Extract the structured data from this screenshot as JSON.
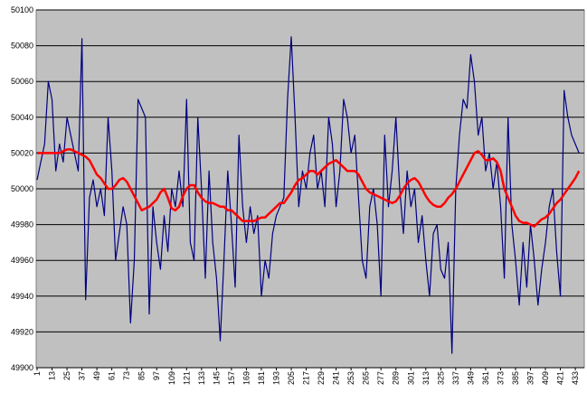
{
  "chart_data": {
    "type": "line",
    "x": [
      1,
      4,
      7,
      10,
      13,
      16,
      19,
      22,
      25,
      28,
      31,
      34,
      37,
      40,
      43,
      46,
      49,
      52,
      55,
      58,
      61,
      64,
      67,
      70,
      73,
      76,
      79,
      82,
      85,
      88,
      91,
      94,
      97,
      100,
      103,
      106,
      109,
      112,
      115,
      118,
      121,
      124,
      127,
      130,
      133,
      136,
      139,
      142,
      145,
      148,
      151,
      154,
      157,
      160,
      163,
      166,
      169,
      172,
      175,
      178,
      181,
      184,
      187,
      190,
      193,
      196,
      199,
      202,
      205,
      208,
      211,
      214,
      217,
      220,
      223,
      226,
      229,
      232,
      235,
      238,
      241,
      244,
      247,
      250,
      253,
      256,
      259,
      262,
      265,
      268,
      271,
      274,
      277,
      280,
      283,
      286,
      289,
      292,
      295,
      298,
      301,
      304,
      307,
      310,
      313,
      316,
      319,
      322,
      325,
      328,
      331,
      334,
      337,
      340,
      343,
      346,
      349,
      352,
      355,
      358,
      361,
      364,
      367,
      370,
      373,
      376,
      379,
      382,
      385,
      388,
      391,
      394,
      397,
      400,
      403,
      406,
      409,
      412,
      415,
      418,
      421,
      424,
      427,
      430,
      433,
      436
    ],
    "series": [
      {
        "color": "#000080",
        "values": [
          50005,
          50015,
          50025,
          50060,
          50050,
          50010,
          50025,
          50015,
          50040,
          50030,
          50020,
          50010,
          50084,
          49938,
          49995,
          50005,
          49990,
          50000,
          49985,
          50040,
          50010,
          49960,
          49975,
          49990,
          49980,
          49925,
          49960,
          50050,
          50045,
          50040,
          49930,
          49990,
          49970,
          49955,
          49985,
          49965,
          50000,
          49990,
          50010,
          49990,
          50050,
          49970,
          49960,
          50040,
          50000,
          49950,
          50010,
          49970,
          49950,
          49915,
          49960,
          50010,
          49980,
          49945,
          50030,
          49990,
          49970,
          49990,
          49975,
          49985,
          49940,
          49960,
          49950,
          49975,
          49985,
          49990,
          49995,
          50050,
          50085,
          50040,
          49990,
          50010,
          50000,
          50020,
          50030,
          50000,
          50010,
          49990,
          50040,
          50025,
          49990,
          50010,
          50050,
          50040,
          50020,
          50030,
          49995,
          49960,
          49950,
          49990,
          50000,
          49980,
          49940,
          50030,
          49990,
          50010,
          50040,
          50000,
          49975,
          50010,
          49990,
          50000,
          49970,
          49985,
          49960,
          49940,
          49975,
          49980,
          49955,
          49950,
          49970,
          49908,
          50000,
          50030,
          50050,
          50045,
          50075,
          50060,
          50030,
          50040,
          50010,
          50020,
          50000,
          50015,
          49990,
          49950,
          50040,
          49980,
          49960,
          49935,
          49970,
          49945,
          49980,
          49960,
          49935,
          49955,
          49970,
          49990,
          50000,
          49965,
          49940,
          50055,
          50040,
          50030,
          50025,
          50020
        ]
      },
      {
        "color": "#ff0000",
        "values": [
          50020,
          50020,
          50020,
          50020,
          50020,
          50020,
          50020,
          50021,
          50022,
          50022,
          50021,
          50020,
          50019,
          50018,
          50016,
          50012,
          50008,
          50006,
          50003,
          50000,
          50000,
          50002,
          50005,
          50006,
          50004,
          50000,
          49996,
          49992,
          49988,
          49989,
          49990,
          49992,
          49994,
          49998,
          50000,
          49995,
          49989,
          49988,
          49990,
          49996,
          50000,
          50002,
          50002,
          49998,
          49995,
          49993,
          49992,
          49992,
          49991,
          49990,
          49990,
          49988,
          49988,
          49986,
          49984,
          49982,
          49982,
          49982,
          49982,
          49983,
          49984,
          49984,
          49986,
          49988,
          49990,
          49992,
          49992,
          49995,
          49998,
          50002,
          50005,
          50006,
          50008,
          50010,
          50010,
          50008,
          50010,
          50012,
          50014,
          50015,
          50016,
          50014,
          50012,
          50010,
          50010,
          50010,
          50008,
          50004,
          50000,
          49998,
          49997,
          49996,
          49995,
          49994,
          49993,
          49992,
          49993,
          49996,
          50000,
          50003,
          50005,
          50006,
          50004,
          50000,
          49996,
          49993,
          49991,
          49990,
          49990,
          49992,
          49995,
          49997,
          50000,
          50004,
          50008,
          50012,
          50016,
          50020,
          50021,
          50019,
          50016,
          50016,
          50017,
          50015,
          50010,
          50000,
          49995,
          49990,
          49985,
          49982,
          49981,
          49981,
          49980,
          49979,
          49981,
          49983,
          49984,
          49986,
          49989,
          49992,
          49994,
          49997,
          50000,
          50003,
          50006,
          50010
        ]
      }
    ],
    "xlim": [
      1,
      438
    ],
    "xticks": [
      1,
      13,
      25,
      37,
      49,
      61,
      73,
      85,
      97,
      109,
      121,
      133,
      145,
      157,
      169,
      181,
      193,
      205,
      217,
      229,
      241,
      253,
      265,
      277,
      289,
      301,
      313,
      325,
      337,
      349,
      361,
      373,
      385,
      397,
      409,
      421,
      433
    ],
    "ylim": [
      49900,
      50100
    ],
    "yticks": [
      49900,
      49920,
      49940,
      49960,
      49980,
      50000,
      50020,
      50040,
      50060,
      50080,
      50100
    ],
    "grid": true
  }
}
